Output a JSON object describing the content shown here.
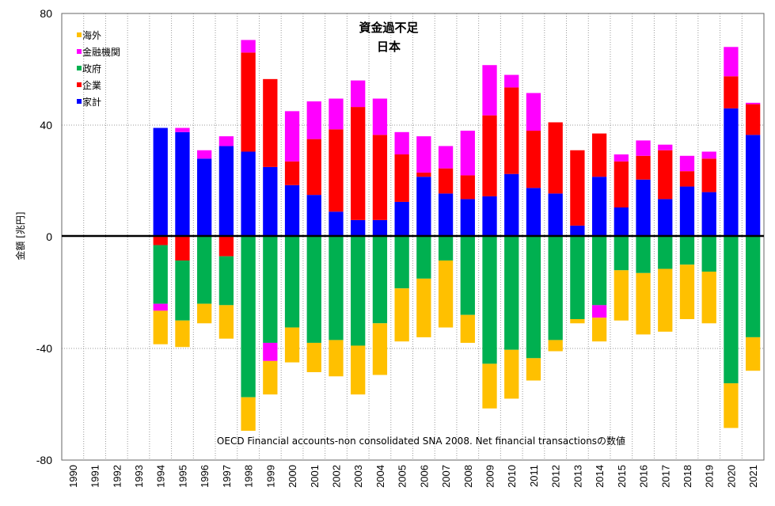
{
  "chart_data": {
    "type": "bar",
    "stacked": true,
    "title": "資金過不足",
    "subtitle": "日本",
    "ylabel": "金額 [兆円]",
    "xlabel": "",
    "ylim": [
      -80,
      80
    ],
    "yticks": [
      80,
      40,
      0,
      -40,
      -80
    ],
    "grid": true,
    "legend_position": "top-left",
    "annotation": "OECD Financial accounts-non consolidated SNA 2008. Net financial transactionsの数値",
    "categories": [
      "1990",
      "1991",
      "1992",
      "1993",
      "1994",
      "1995",
      "1996",
      "1997",
      "1998",
      "1999",
      "2000",
      "2001",
      "2002",
      "2003",
      "2004",
      "2005",
      "2006",
      "2007",
      "2008",
      "2009",
      "2010",
      "2011",
      "2012",
      "2013",
      "2014",
      "2015",
      "2016",
      "2017",
      "2018",
      "2019",
      "2020",
      "2021"
    ],
    "series": [
      {
        "name": "家計",
        "color": "#0000ff",
        "values": [
          null,
          null,
          null,
          null,
          39,
          37.5,
          28,
          32.5,
          30.5,
          25,
          18.5,
          15,
          9,
          6,
          6,
          12.5,
          21.5,
          15.5,
          13.5,
          14.5,
          22.5,
          17.5,
          15.5,
          4,
          21.5,
          10.5,
          20.5,
          13.5,
          18,
          16,
          46,
          36.5
        ]
      },
      {
        "name": "企業",
        "color": "#ff0000",
        "values": [
          null,
          null,
          null,
          null,
          -3,
          -8.5,
          0,
          -7,
          35.5,
          31.5,
          8.5,
          20,
          29.5,
          40.5,
          30.5,
          17,
          1.5,
          9,
          8.5,
          29,
          31,
          20.5,
          25.5,
          27,
          15.5,
          16.5,
          8.5,
          17.5,
          5.5,
          12,
          11.5,
          11
        ]
      },
      {
        "name": "政府",
        "color": "#00b050",
        "values": [
          null,
          null,
          null,
          null,
          -21,
          -21.5,
          -24,
          -17.5,
          -57.5,
          -38,
          -32.5,
          -38,
          -37,
          -39,
          -31,
          -18.5,
          -15,
          -8.5,
          -28,
          -45.5,
          -40.5,
          -43.5,
          -37,
          -29.5,
          -24.5,
          -12,
          -13,
          -11.5,
          -10,
          -12.5,
          -52.5,
          -36
        ]
      },
      {
        "name": "金融機関",
        "color": "#ff00ff",
        "values": [
          null,
          null,
          null,
          null,
          -2.5,
          1.5,
          3,
          3.5,
          4.5,
          -6.5,
          18,
          13.5,
          11,
          9.5,
          13,
          8,
          13,
          8,
          16,
          18,
          4.5,
          13.5,
          0,
          0,
          -4.5,
          2.5,
          5.5,
          2,
          5.5,
          2.5,
          10.5,
          0.5
        ]
      },
      {
        "name": "海外",
        "color": "#ffc000",
        "values": [
          null,
          null,
          null,
          null,
          -12,
          -9.5,
          -7,
          -12,
          -12,
          -12,
          -12.5,
          -10.5,
          -13,
          -17.5,
          -18.5,
          -19,
          -21,
          -24,
          -10,
          -16,
          -17.5,
          -8,
          -4,
          -1.5,
          -8.5,
          -18,
          -22,
          -22.5,
          -19.5,
          -18.5,
          -16,
          -12
        ]
      }
    ]
  }
}
